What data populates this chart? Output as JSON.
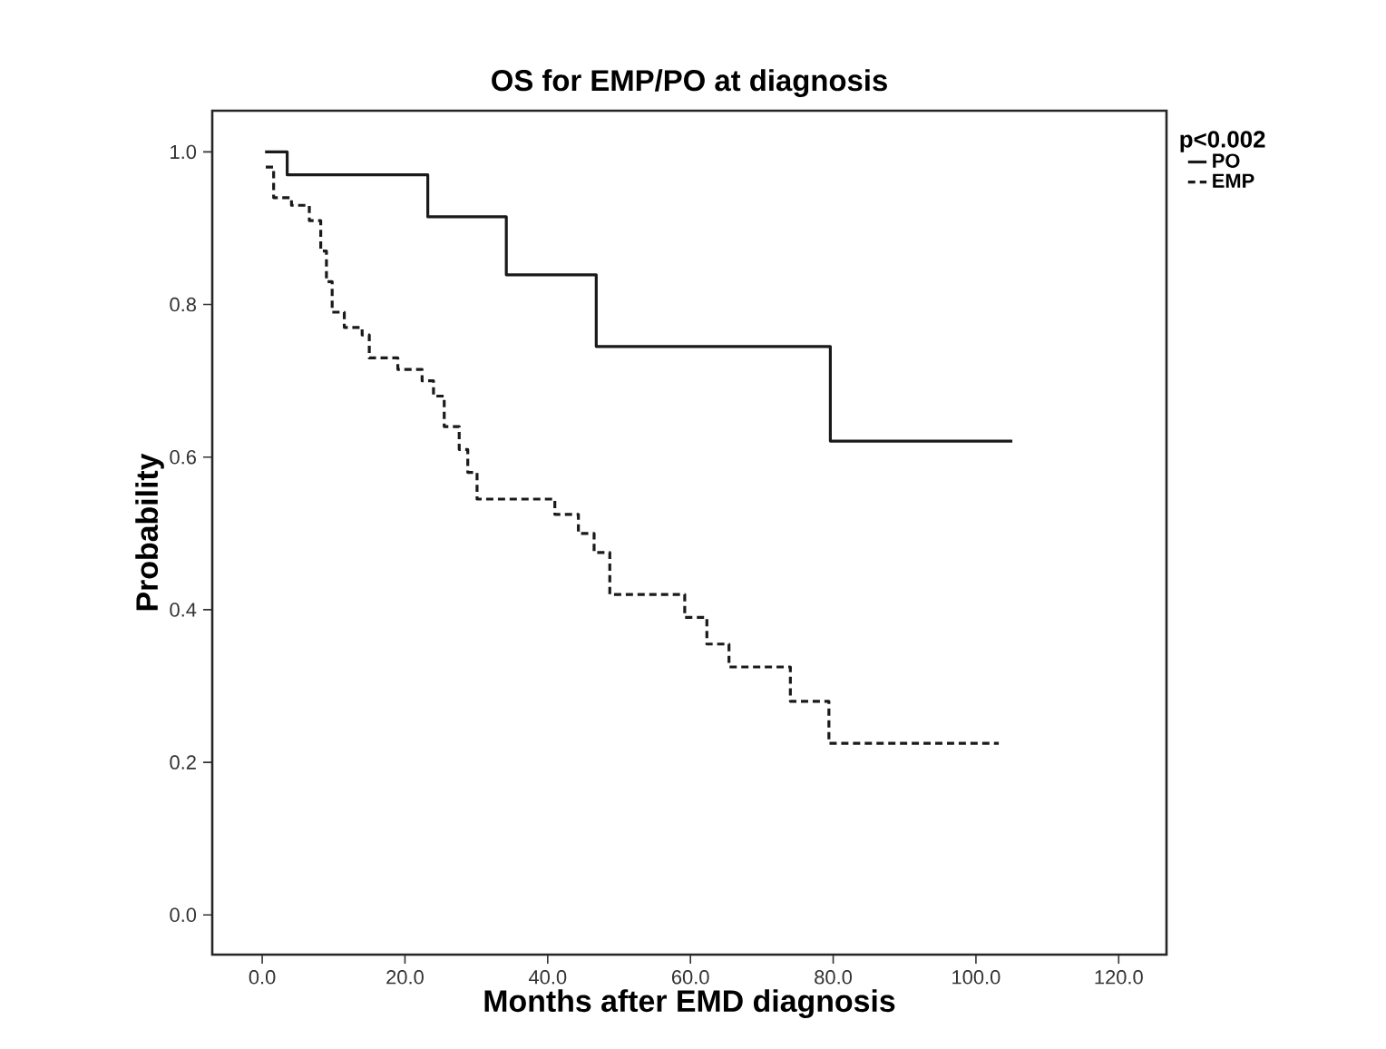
{
  "chart_data": {
    "type": "step",
    "title": "OS for EMP/PO at diagnosis",
    "xlabel": "Months after EMD diagnosis",
    "ylabel": "Probability",
    "legend_title": "p<0.002",
    "legend": "top right",
    "marker": "none",
    "xlim": [
      -7,
      126.7
    ],
    "ylim": [
      -0.052,
      1.054
    ],
    "xticks": [
      {
        "value": 0,
        "label": "0.0"
      },
      {
        "value": 20,
        "label": "20.0"
      },
      {
        "value": 40,
        "label": "40.0"
      },
      {
        "value": 60,
        "label": "60.0"
      },
      {
        "value": 80,
        "label": "80.0"
      },
      {
        "value": 100,
        "label": "100.0"
      },
      {
        "value": 120,
        "label": "120.0"
      }
    ],
    "yticks": [
      {
        "value": 0,
        "label": "0.0"
      },
      {
        "value": 0.2,
        "label": "0.2"
      },
      {
        "value": 0.4,
        "label": "0.4"
      },
      {
        "value": 0.6,
        "label": "0.6"
      },
      {
        "value": 0.8,
        "label": "0.8"
      },
      {
        "value": 1,
        "label": "1.0"
      }
    ],
    "series": [
      {
        "name": "PO",
        "color": "#1a1a1a",
        "line_style": "solid",
        "x": [
          0.4,
          3.5,
          23.2,
          34.2,
          46.8,
          79.6,
          105.1
        ],
        "values": [
          1.0,
          0.97,
          0.915,
          0.839,
          0.745,
          0.621,
          0.621
        ]
      },
      {
        "name": "EMP",
        "color": "#1a1a1a",
        "line_style": "dashed",
        "x": [
          0.5,
          1.6,
          4.1,
          6.6,
          8.2,
          9.0,
          9.8,
          11.5,
          14,
          15,
          19,
          22.4,
          24,
          25.5,
          27.6,
          28.8,
          30.1,
          41,
          44.3,
          46.5,
          48.7,
          59.2,
          62.3,
          65.4,
          74,
          79.4,
          103.2
        ],
        "values": [
          0.98,
          0.94,
          0.93,
          0.91,
          0.87,
          0.83,
          0.79,
          0.77,
          0.76,
          0.73,
          0.715,
          0.7,
          0.68,
          0.64,
          0.61,
          0.58,
          0.545,
          0.525,
          0.5,
          0.475,
          0.42,
          0.39,
          0.355,
          0.325,
          0.28,
          0.225,
          0.225
        ]
      }
    ]
  }
}
